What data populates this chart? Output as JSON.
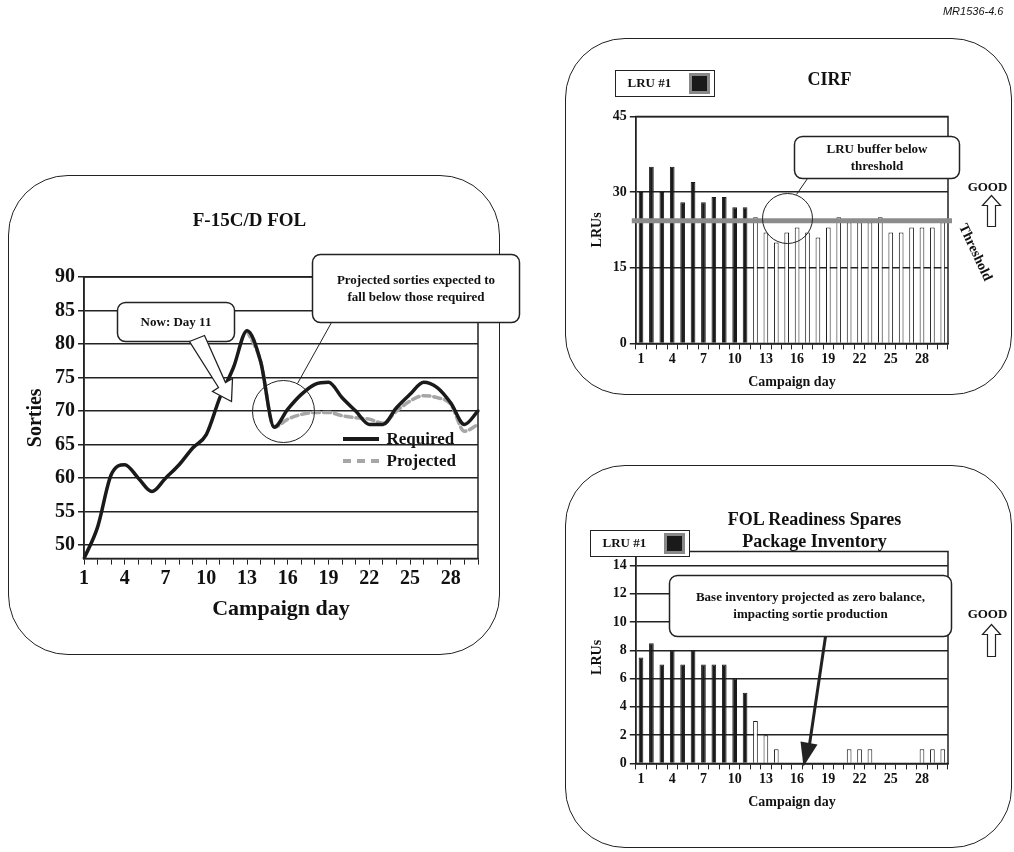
{
  "chart_data": [
    {
      "type": "line",
      "title": "F-15C/D FOL",
      "xlabel": "Campaign day",
      "ylabel": "Sorties",
      "categories": [
        "1",
        null,
        null,
        "4",
        null,
        null,
        "7",
        null,
        null,
        "10",
        null,
        null,
        "13",
        null,
        null,
        "16",
        null,
        null,
        "19",
        null,
        null,
        "22",
        null,
        null,
        "25",
        null,
        null,
        "28",
        null,
        null
      ],
      "series": [
        {
          "name": "Required",
          "color": "#1a1a1a",
          "line_style": "solid",
          "values": [
            48,
            52.7,
            60.5,
            62,
            60,
            58,
            60,
            62,
            64.5,
            66.5,
            72,
            76.5,
            82,
            77.4,
            67.6,
            70.3,
            72.5,
            74,
            74.3,
            72,
            70,
            68,
            68,
            70.5,
            72.5,
            74.3,
            73.5,
            71.2,
            68,
            70
          ]
        },
        {
          "name": "Projected",
          "color": "#a6a6a6",
          "line_style": "dashed",
          "values": [
            null,
            null,
            null,
            null,
            null,
            null,
            null,
            null,
            null,
            null,
            null,
            null,
            82,
            77.4,
            67.6,
            68.8,
            69.5,
            69.8,
            69.8,
            69.3,
            69,
            68.8,
            68.2,
            70,
            71.5,
            72.3,
            72,
            71,
            67,
            68
          ]
        }
      ],
      "ylim": [
        48,
        90
      ],
      "yticks": [
        50,
        55,
        60,
        65,
        70,
        75,
        80,
        85,
        90
      ],
      "grid": "y",
      "legend": "bottom right",
      "marker": "none",
      "annotations": [
        "Now: Day 11",
        "Projected sorties expected to fall below those required"
      ]
    },
    {
      "type": "bar",
      "title": "CIRF",
      "xlabel": "Campaign day",
      "ylabel": "LRUs",
      "categories": [
        "1",
        null,
        null,
        "4",
        null,
        null,
        "7",
        null,
        null,
        "10",
        null,
        null,
        "13",
        null,
        null,
        "16",
        null,
        null,
        "19",
        null,
        null,
        "22",
        null,
        null,
        "25",
        null,
        null,
        "28",
        null,
        null
      ],
      "series": [
        {
          "name": "LRU #1",
          "color": "#1a1a1a",
          "colors": [
            "#1a1a1a",
            "#1a1a1a",
            "#1a1a1a",
            "#1a1a1a",
            "#1a1a1a",
            "#1a1a1a",
            "#1a1a1a",
            "#1a1a1a",
            "#1a1a1a",
            "#1a1a1a",
            "#1a1a1a",
            "#ffffff",
            "#ffffff",
            "#ffffff",
            "#ffffff",
            "#ffffff",
            "#ffffff",
            "#ffffff",
            "#ffffff",
            "#ffffff",
            "#ffffff",
            "#ffffff",
            "#ffffff",
            "#ffffff",
            "#ffffff",
            "#ffffff",
            "#ffffff",
            "#ffffff",
            "#ffffff",
            "#ffffff"
          ],
          "values": [
            30,
            35,
            30,
            35,
            28,
            32,
            28,
            29,
            29,
            27,
            27,
            25,
            22,
            20,
            22,
            23,
            22,
            21,
            23,
            25,
            24,
            24,
            24,
            25,
            22,
            22,
            23,
            23,
            23,
            24
          ]
        }
      ],
      "ylim": [
        0,
        45
      ],
      "yticks": [
        0,
        15,
        30,
        45
      ],
      "grid": "y",
      "legend": "top left",
      "ref_lines": [
        {
          "axis": "y",
          "value": 24.3,
          "label": "Threshold",
          "color": "#8c8c8c"
        }
      ],
      "annotations": [
        "LRU buffer below threshold",
        "GOOD",
        "MR1536-4.6"
      ]
    },
    {
      "type": "bar",
      "title": "FOL Readiness Spares Package Inventory",
      "xlabel": "Campaign day",
      "ylabel": "LRUs",
      "categories": [
        "1",
        null,
        null,
        "4",
        null,
        null,
        "7",
        null,
        null,
        "10",
        null,
        null,
        "13",
        null,
        null,
        "16",
        null,
        null,
        "19",
        null,
        null,
        "22",
        null,
        null,
        "25",
        null,
        null,
        "28",
        null,
        null
      ],
      "series": [
        {
          "name": "LRU #1",
          "color": "#1a1a1a",
          "colors": [
            "#1a1a1a",
            "#1a1a1a",
            "#1a1a1a",
            "#1a1a1a",
            "#1a1a1a",
            "#1a1a1a",
            "#1a1a1a",
            "#1a1a1a",
            "#1a1a1a",
            "#1a1a1a",
            "#1a1a1a",
            "#ffffff",
            "#ffffff",
            "#ffffff",
            "#ffffff",
            "#ffffff",
            "#ffffff",
            "#ffffff",
            "#ffffff",
            "#ffffff",
            "#ffffff",
            "#ffffff",
            "#ffffff",
            "#ffffff",
            "#ffffff",
            "#ffffff",
            "#ffffff",
            "#ffffff",
            "#ffffff",
            "#ffffff"
          ],
          "values": [
            7.5,
            8.5,
            7,
            8,
            7,
            8,
            7,
            7,
            7,
            6,
            5,
            3,
            2,
            1,
            0,
            0,
            0,
            0,
            0,
            0,
            1,
            1,
            1,
            0,
            0,
            0,
            0,
            1,
            1,
            1
          ]
        }
      ],
      "ylim": [
        0,
        15
      ],
      "yticks": [
        0,
        2,
        4,
        6,
        8,
        10,
        12,
        14
      ],
      "grid": "y",
      "legend": "top left",
      "annotations": [
        "Base inventory projected as zero balance, impacting sortie production",
        "GOOD"
      ]
    }
  ]
}
